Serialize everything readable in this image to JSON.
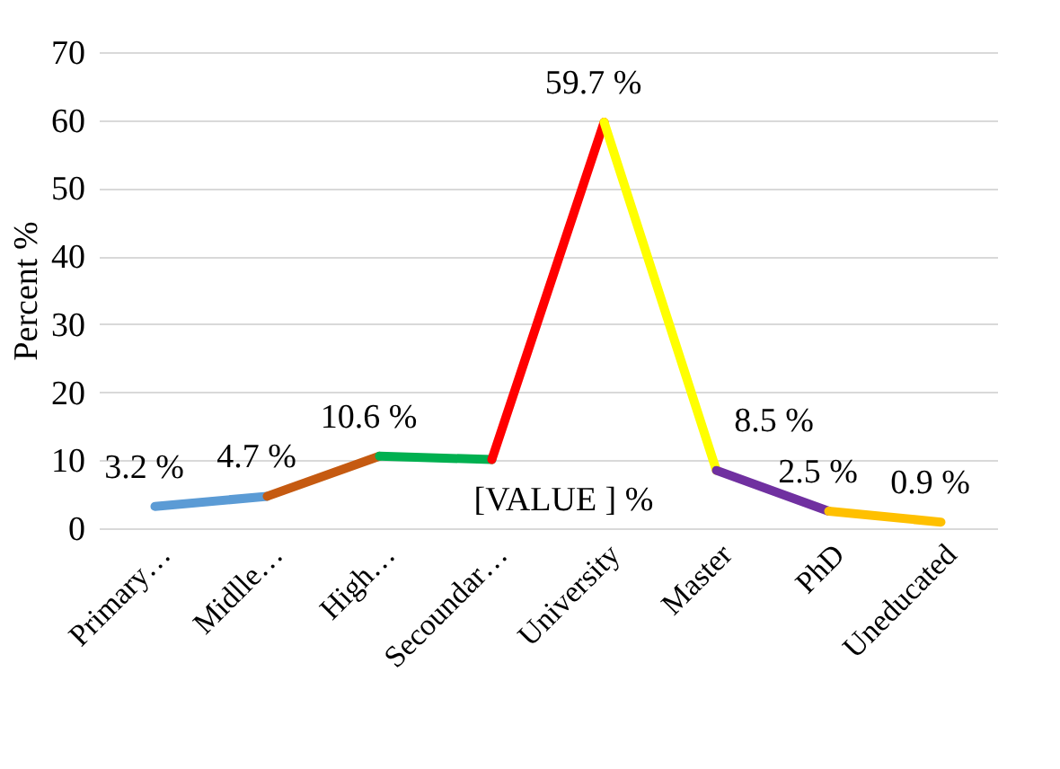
{
  "chart_data": {
    "type": "line",
    "ylabel": "Percent %",
    "categories": [
      "Primary…",
      "Midlle…",
      "High…",
      "Secoundar…",
      "University",
      "Master",
      "PhD",
      "Uneducated"
    ],
    "series": [
      {
        "color": "#5b9bd5",
        "values": [
          3.2,
          4.7,
          null,
          null,
          null,
          null,
          null,
          null
        ],
        "value_labels": [
          "3.2 %",
          null,
          null,
          null,
          null,
          null,
          null,
          null
        ]
      },
      {
        "color": "#c55a11",
        "values": [
          null,
          4.7,
          10.6,
          null,
          null,
          null,
          null,
          null
        ],
        "value_labels": [
          null,
          "4.7 %",
          null,
          null,
          null,
          null,
          null,
          null
        ]
      },
      {
        "color": "#00b050",
        "values": [
          null,
          null,
          10.6,
          10.1,
          null,
          null,
          null,
          null
        ],
        "value_labels": [
          null,
          null,
          "10.6 %",
          null,
          null,
          null,
          null,
          null
        ]
      },
      {
        "color": "#ff0000",
        "values": [
          null,
          null,
          null,
          10.1,
          59.7,
          null,
          null,
          null
        ],
        "value_labels": [
          null,
          null,
          null,
          "[VALUE ] %",
          null,
          null,
          null,
          null
        ]
      },
      {
        "color": "#ffff00",
        "values": [
          null,
          null,
          null,
          null,
          59.7,
          8.5,
          null,
          null
        ],
        "value_labels": [
          null,
          null,
          null,
          null,
          "59.7 %",
          null,
          null,
          null
        ]
      },
      {
        "color": "#7030a0",
        "values": [
          null,
          null,
          null,
          null,
          null,
          8.5,
          2.5,
          null
        ],
        "value_labels": [
          null,
          null,
          null,
          null,
          null,
          "8.5 %",
          null,
          null
        ]
      },
      {
        "color": "#ffc000",
        "values": [
          null,
          null,
          null,
          null,
          null,
          null,
          2.5,
          0.9
        ],
        "value_labels": [
          null,
          null,
          null,
          null,
          null,
          null,
          "2.5 %",
          "0.9 %"
        ]
      }
    ],
    "ylim": [
      0,
      70
    ],
    "yticks": [
      0,
      10,
      20,
      30,
      40,
      50,
      60,
      70
    ],
    "grid": "y",
    "line_style": "solid",
    "marker": "none"
  }
}
